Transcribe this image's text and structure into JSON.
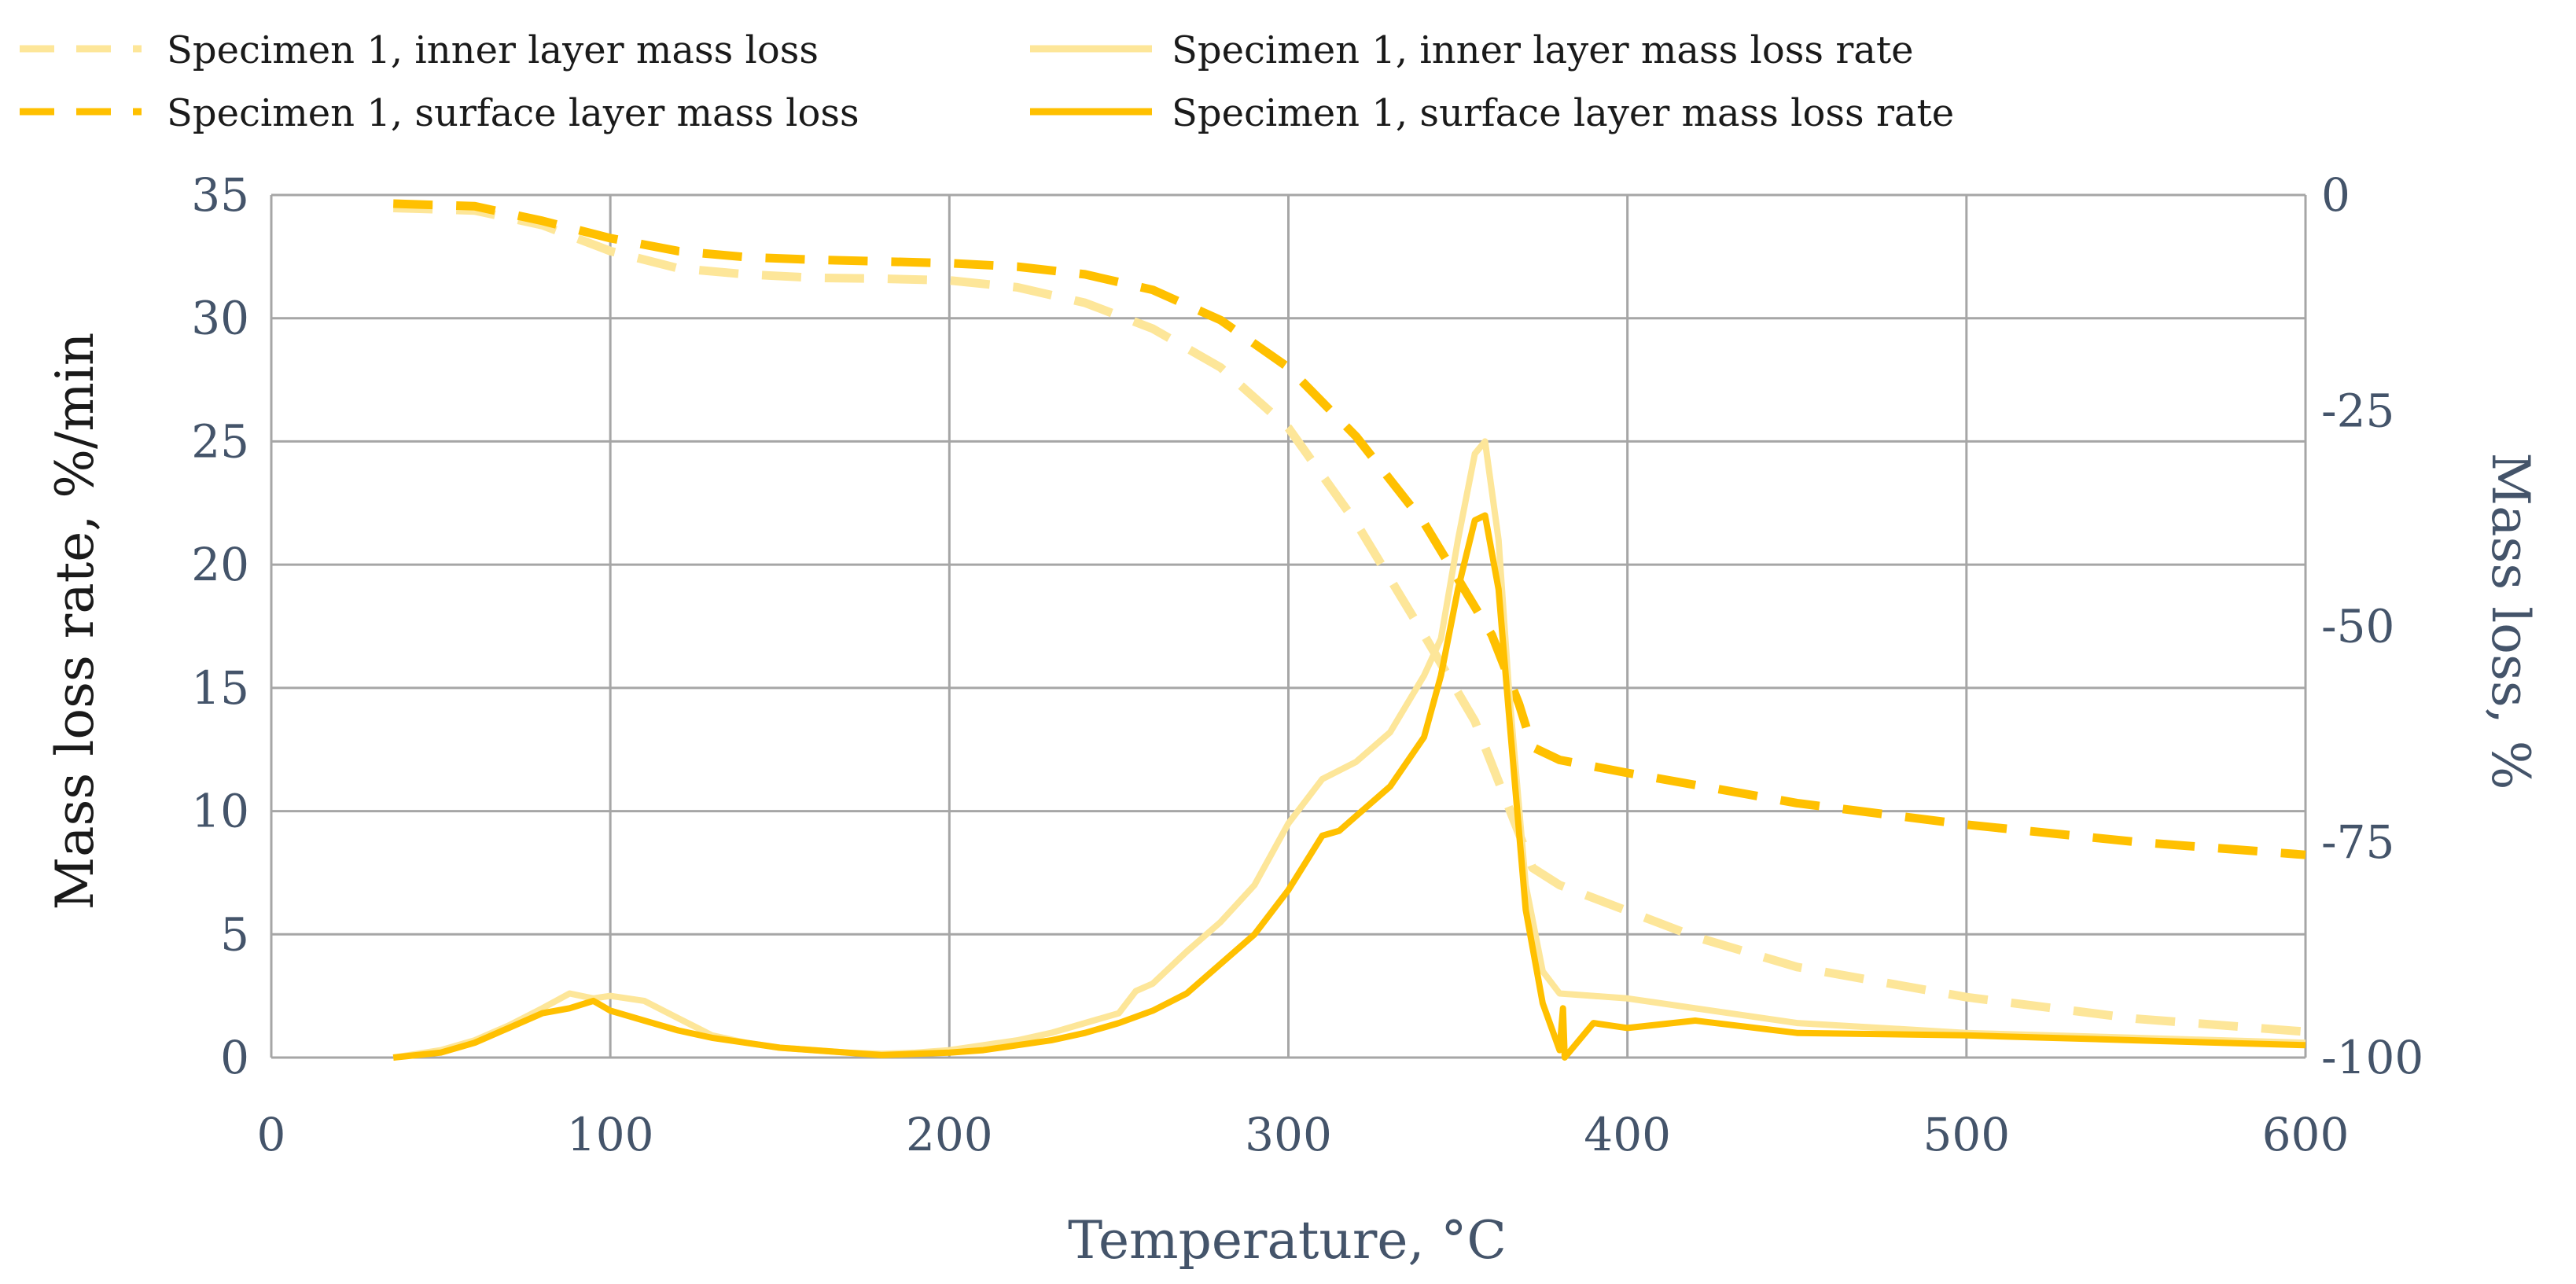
{
  "chart_data": {
    "type": "line",
    "xlabel": "Temperature, °C",
    "ylabel": "Mass loss  rate, %/min",
    "y2label": "Mass loss, %",
    "xlim": [
      0,
      600
    ],
    "ylim": [
      0,
      35
    ],
    "y2lim": [
      -100,
      0
    ],
    "x_ticks": [
      0,
      100,
      200,
      300,
      400,
      500,
      600
    ],
    "y_ticks": [
      0,
      5,
      10,
      15,
      20,
      25,
      30,
      35
    ],
    "y2_ticks": [
      0,
      -25,
      -50,
      -75,
      -100
    ],
    "grid": true,
    "legend_position": "top",
    "colors": {
      "inner": "#fde699",
      "surface": "#ffc000",
      "tick_text": "#44546a",
      "grid": "#a6a6a6"
    },
    "series": [
      {
        "name": "Specimen 1, inner layer  mass loss",
        "axis": "right",
        "style": "dashed",
        "color": "#fde699",
        "x": [
          36,
          60,
          80,
          100,
          120,
          140,
          160,
          180,
          200,
          220,
          240,
          260,
          280,
          300,
          320,
          340,
          355,
          365,
          372,
          380,
          400,
          420,
          450,
          500,
          550,
          600
        ],
        "y": [
          -1.5,
          -1.8,
          -3.5,
          -6.5,
          -8.5,
          -9.2,
          -9.6,
          -9.7,
          -9.9,
          -10.7,
          -12.5,
          -15.5,
          -20,
          -27,
          -38,
          -51,
          -61,
          -71,
          -78,
          -80,
          -83,
          -86,
          -89.5,
          -93,
          -95.5,
          -97
        ]
      },
      {
        "name": "Specimen 1, surface layer mass loss",
        "axis": "right",
        "style": "dashed",
        "color": "#ffc000",
        "x": [
          36,
          60,
          80,
          100,
          120,
          140,
          160,
          180,
          200,
          220,
          240,
          260,
          280,
          300,
          320,
          340,
          360,
          368,
          372,
          380,
          400,
          450,
          500,
          550,
          600
        ],
        "y": [
          -1,
          -1.3,
          -3,
          -5,
          -6.5,
          -7.2,
          -7.5,
          -7.7,
          -7.9,
          -8.3,
          -9.2,
          -11,
          -14.5,
          -20,
          -28,
          -38,
          -51,
          -59,
          -64,
          -65.5,
          -67,
          -70.5,
          -73,
          -75,
          -76.5
        ]
      },
      {
        "name": "Specimen 1, inner layer mass loss rate",
        "axis": "left",
        "style": "solid",
        "color": "#fde699",
        "x": [
          36,
          50,
          60,
          70,
          80,
          88,
          95,
          100,
          110,
          120,
          130,
          140,
          150,
          160,
          170,
          180,
          190,
          200,
          210,
          220,
          230,
          240,
          250,
          255,
          260,
          270,
          280,
          290,
          300,
          310,
          320,
          330,
          340,
          345,
          350,
          355,
          358,
          362,
          365,
          370,
          375,
          380,
          390,
          400,
          420,
          450,
          500,
          550,
          600
        ],
        "y": [
          0,
          0.3,
          0.7,
          1.3,
          2,
          2.6,
          2.4,
          2.5,
          2.3,
          1.6,
          0.9,
          0.6,
          0.4,
          0.3,
          0.2,
          0.15,
          0.2,
          0.3,
          0.5,
          0.7,
          1,
          1.4,
          1.8,
          2.7,
          3,
          4.3,
          5.5,
          7,
          9.5,
          11.3,
          12,
          13.2,
          15.5,
          17,
          21,
          24.5,
          25,
          21,
          15,
          7,
          3.5,
          2.6,
          2.5,
          2.4,
          2.0,
          1.4,
          1.0,
          0.8,
          0.6
        ]
      },
      {
        "name": "Specimen 1, surface layer mass loss rate",
        "axis": "left",
        "style": "solid",
        "color": "#ffc000",
        "x": [
          36,
          50,
          60,
          70,
          80,
          88,
          95,
          100,
          110,
          120,
          130,
          140,
          150,
          160,
          170,
          180,
          190,
          200,
          210,
          220,
          230,
          240,
          250,
          260,
          270,
          280,
          290,
          300,
          310,
          315,
          320,
          330,
          340,
          345,
          350,
          355,
          358,
          362,
          365,
          370,
          375,
          380,
          381,
          381.5,
          390,
          400,
          420,
          450,
          500,
          550,
          600
        ],
        "y": [
          0,
          0.2,
          0.6,
          1.2,
          1.8,
          2,
          2.3,
          1.9,
          1.5,
          1.1,
          0.8,
          0.6,
          0.4,
          0.3,
          0.2,
          0.1,
          0.15,
          0.2,
          0.3,
          0.5,
          0.7,
          1,
          1.4,
          1.9,
          2.6,
          3.8,
          5,
          6.8,
          9,
          9.2,
          9.8,
          11,
          13,
          15.5,
          19,
          21.8,
          22,
          19,
          14,
          6,
          2.2,
          0.3,
          2,
          0,
          1.4,
          1.2,
          1.5,
          1.0,
          0.9,
          0.7,
          0.5
        ]
      }
    ]
  }
}
